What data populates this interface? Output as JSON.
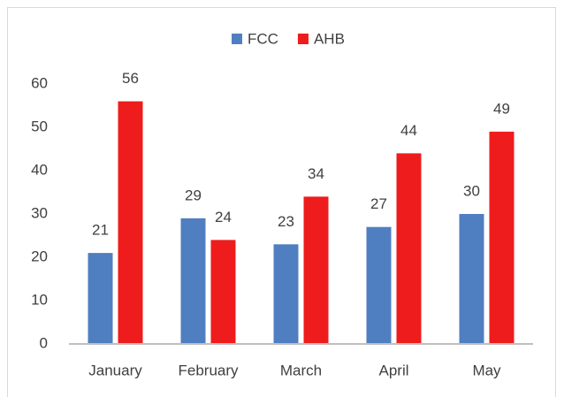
{
  "chart_data": {
    "type": "bar",
    "categories": [
      "January",
      "February",
      "March",
      "April",
      "May"
    ],
    "series": [
      {
        "name": "FCC",
        "color": "#4f7fc0",
        "values": [
          21,
          29,
          23,
          27,
          30
        ]
      },
      {
        "name": "AHB",
        "color": "#ee1c1c",
        "values": [
          56,
          24,
          34,
          44,
          49
        ]
      }
    ],
    "ylim": [
      0,
      60
    ],
    "yticks": [
      0,
      10,
      20,
      30,
      40,
      50,
      60
    ],
    "grid": false,
    "legend": "top"
  }
}
